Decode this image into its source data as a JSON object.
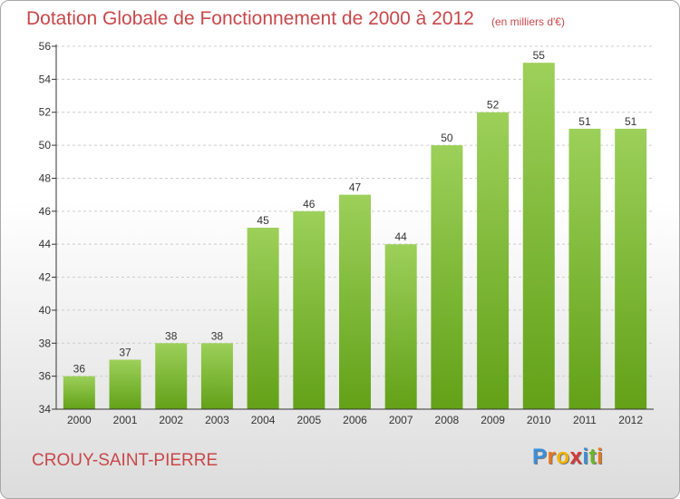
{
  "title": "Dotation Globale de Fonctionnement de 2000 à 2012",
  "unit_note": "(en milliers d'€)",
  "commune": "CROUY-SAINT-PIERRE",
  "logo": {
    "text": "Proxiti",
    "letter_colors": [
      "#3a8fd9",
      "#e8771c",
      "#f0b400",
      "#d63a3a",
      "#3a8fd9",
      "#6fb52c",
      "#e8771c"
    ]
  },
  "colors": {
    "title": "#c8474a",
    "bar_top": "#9cd05a",
    "bar_bottom": "#63a118",
    "axis": "#333333",
    "grid": "#cccccc"
  },
  "chart_data": {
    "type": "bar",
    "categories": [
      "2000",
      "2001",
      "2002",
      "2003",
      "2004",
      "2005",
      "2006",
      "2007",
      "2008",
      "2009",
      "2010",
      "2011",
      "2012"
    ],
    "values": [
      36,
      37,
      38,
      38,
      45,
      46,
      47,
      44,
      50,
      52,
      55,
      51,
      51
    ],
    "ylim": [
      34,
      56
    ],
    "yticks": [
      34,
      36,
      38,
      40,
      42,
      44,
      46,
      48,
      50,
      52,
      54,
      56
    ],
    "grid": "horizontal dashed",
    "data_labels": true
  }
}
